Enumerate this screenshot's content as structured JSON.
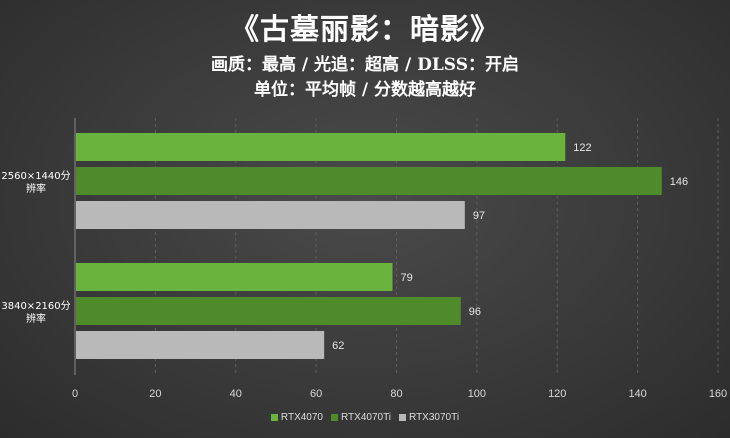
{
  "title": "《古墓丽影：暗影》",
  "subtitle1": "画质：最高 / 光追：超高 / DLSS：开启",
  "subtitle2": "单位：平均帧 / 分数越高越好",
  "chart_data": {
    "type": "bar",
    "orientation": "horizontal",
    "categories": [
      "2560×1440分辨率",
      "3840×2160分辨率"
    ],
    "series": [
      {
        "name": "RTX4070",
        "values": [
          122,
          79
        ],
        "color": "#6ab43e"
      },
      {
        "name": "RTX4070Ti",
        "values": [
          146,
          96
        ],
        "color": "#4f8a2b"
      },
      {
        "name": "RTX3070Ti",
        "values": [
          97,
          62
        ],
        "color": "#b9b9b9"
      }
    ],
    "xlim": [
      0,
      160
    ],
    "xticks": [
      0,
      20,
      40,
      60,
      80,
      100,
      120,
      140,
      160
    ],
    "grid": true,
    "legend_position": "bottom"
  }
}
